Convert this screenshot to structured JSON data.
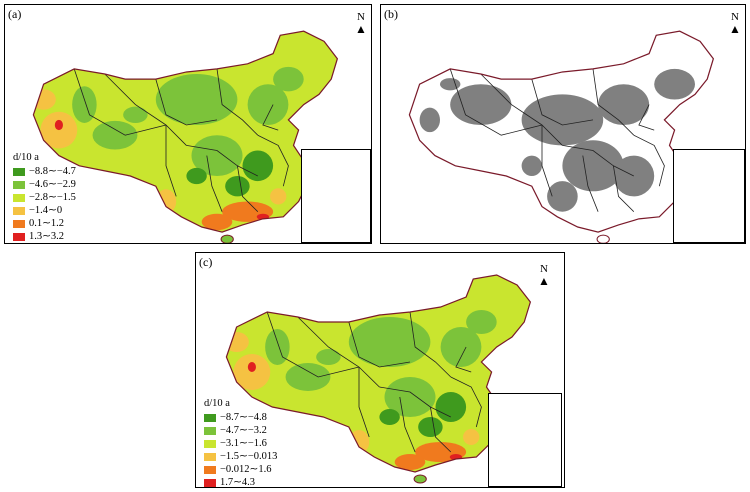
{
  "panels": {
    "a": {
      "label": "(a)",
      "legend_title": "d/10 a",
      "legend": [
        {
          "label": "−8.8∼−4.7",
          "color": "#3f9a1e"
        },
        {
          "label": "−4.6∼−2.9",
          "color": "#7cc33a"
        },
        {
          "label": "−2.8∼−1.5",
          "color": "#c9e52f"
        },
        {
          "label": "−1.4∼0",
          "color": "#f5c242"
        },
        {
          "label": "0.1∼1.2",
          "color": "#f07a1e"
        },
        {
          "label": "1.3∼3.2",
          "color": "#e02020"
        }
      ]
    },
    "b": {
      "label": "(b)",
      "significant_color": "#808080"
    },
    "c": {
      "label": "(c)",
      "legend_title": "d/10 a",
      "legend": [
        {
          "label": "−8.7∼−4.8",
          "color": "#3f9a1e"
        },
        {
          "label": "−4.7∼−3.2",
          "color": "#7cc33a"
        },
        {
          "label": "−3.1∼−1.6",
          "color": "#c9e52f"
        },
        {
          "label": "−1.5∼−0.013",
          "color": "#f5c242"
        },
        {
          "label": "−0.012∼1.6",
          "color": "#f07a1e"
        },
        {
          "label": "1.7∼4.3",
          "color": "#e02020"
        }
      ]
    }
  },
  "north_label": "N",
  "border_color": "#7a1a2a"
}
